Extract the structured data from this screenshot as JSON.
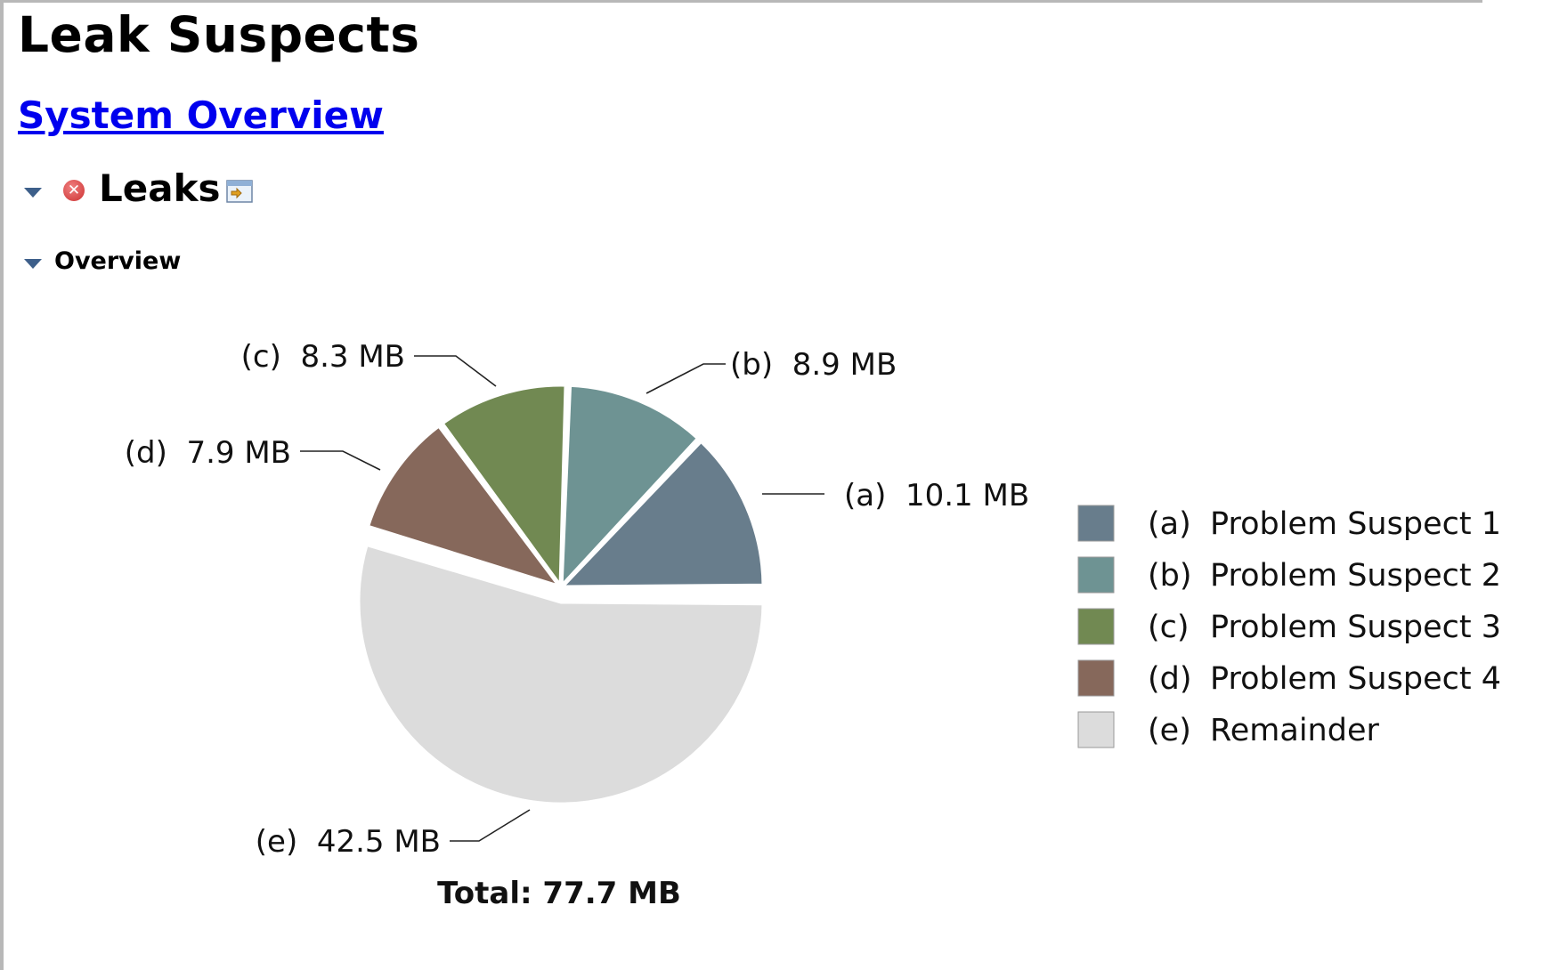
{
  "page": {
    "title": "Leak Suspects",
    "overview_link": "System Overview"
  },
  "leaks": {
    "heading": "Leaks",
    "status_icon": "error-icon",
    "details_icon": "details-icon",
    "expanded": true
  },
  "overview": {
    "label": "Overview",
    "expanded": true
  },
  "chart_data": {
    "type": "pie",
    "unit": "MB",
    "slices": [
      {
        "id": "(a)",
        "name": "Problem Suspect 1",
        "value": 10.1,
        "label": "10.1 MB",
        "color": "#687d8c",
        "exploded": true
      },
      {
        "id": "(b)",
        "name": "Problem Suspect 2",
        "value": 8.9,
        "label": "8.9 MB",
        "color": "#6e9393",
        "exploded": true
      },
      {
        "id": "(c)",
        "name": "Problem Suspect 3",
        "value": 8.3,
        "label": "8.3 MB",
        "color": "#718952",
        "exploded": true
      },
      {
        "id": "(d)",
        "name": "Problem Suspect 4",
        "value": 7.9,
        "label": "7.9 MB",
        "color": "#86685b",
        "exploded": true
      },
      {
        "id": "(e)",
        "name": "Remainder",
        "value": 42.5,
        "label": "42.5 MB",
        "color": "#dcdcdc",
        "exploded": false
      }
    ],
    "total_label": "Total: 77.7 MB",
    "legend_position": "right"
  }
}
